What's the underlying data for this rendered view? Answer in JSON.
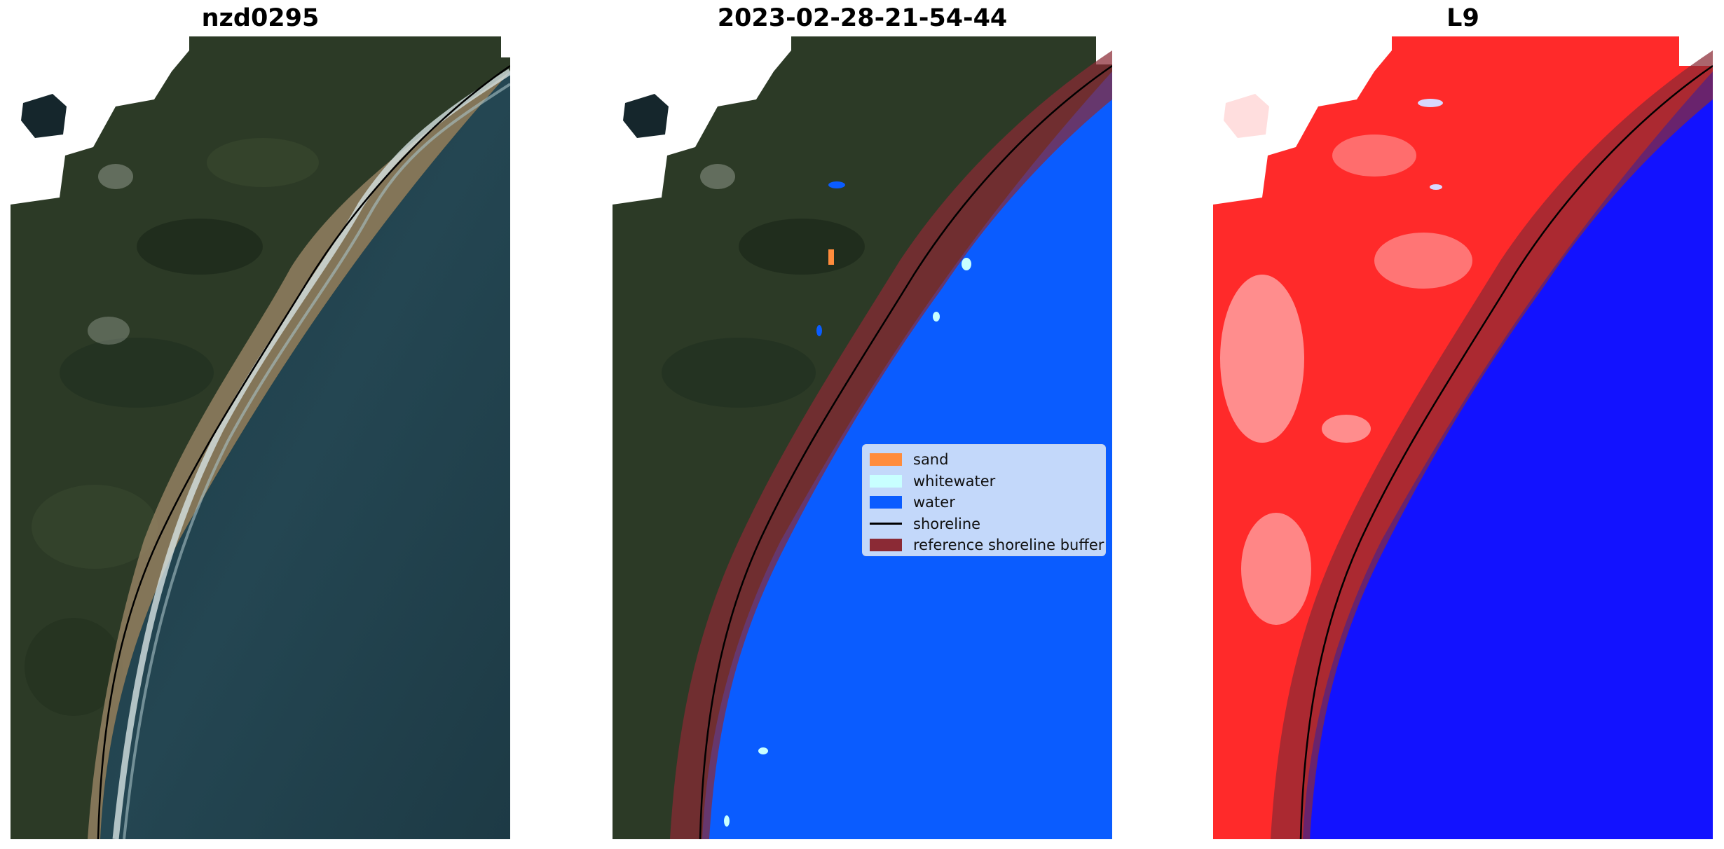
{
  "panels": [
    {
      "title": "nzd0295"
    },
    {
      "title": "2023-02-28-21-54-44"
    },
    {
      "title": "L9"
    }
  ],
  "legend": {
    "items": [
      {
        "label": "sand",
        "color": "#ff8c3c"
      },
      {
        "label": "whitewater",
        "color": "#c8ffff"
      },
      {
        "label": "water",
        "color": "#0a5cff"
      },
      {
        "label": "shoreline",
        "color": "#000000"
      },
      {
        "label": "reference shoreline buffer",
        "color": "#8b2a35"
      }
    ]
  },
  "colors": {
    "land": "#2c3a26",
    "ocean": "#1f3d48",
    "beach": "#a0896a",
    "classified_water": "#0a5cff",
    "buffer": "#8b2a35",
    "index_land": "#ff2a2a",
    "index_water": "#1212ff"
  }
}
